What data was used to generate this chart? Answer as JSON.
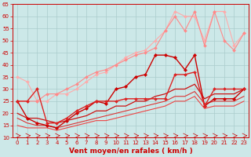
{
  "title": "",
  "xlabel": "Vent moyen/en rafales ( km/h )",
  "ylabel": "",
  "xlim": [
    -0.5,
    23.5
  ],
  "ylim": [
    10,
    65
  ],
  "yticks": [
    10,
    15,
    20,
    25,
    30,
    35,
    40,
    45,
    50,
    55,
    60,
    65
  ],
  "xticks": [
    0,
    1,
    2,
    3,
    4,
    5,
    6,
    7,
    8,
    9,
    10,
    11,
    12,
    13,
    14,
    15,
    16,
    17,
    18,
    19,
    20,
    21,
    22,
    23
  ],
  "bg_color": "#cce8e8",
  "grid_color": "#aacccc",
  "axis_color": "#cc0000",
  "series": [
    {
      "x": [
        0,
        1,
        2,
        3,
        4,
        5,
        6,
        7,
        8,
        9,
        10,
        11,
        12,
        13,
        14,
        15,
        16,
        17,
        18,
        19,
        20,
        21,
        22,
        23
      ],
      "y": [
        35,
        33,
        25,
        25,
        28,
        28,
        30,
        33,
        36,
        37,
        40,
        43,
        45,
        46,
        50,
        54,
        62,
        60,
        60,
        50,
        62,
        62,
        48,
        53
      ],
      "color": "#ffaaaa",
      "lw": 0.8,
      "marker": "D",
      "ms": 2.0
    },
    {
      "x": [
        0,
        1,
        2,
        3,
        4,
        5,
        6,
        7,
        8,
        9,
        10,
        11,
        12,
        13,
        14,
        15,
        16,
        17,
        18,
        19,
        20,
        21,
        22,
        23
      ],
      "y": [
        25,
        25,
        25,
        28,
        28,
        30,
        32,
        35,
        37,
        38,
        40,
        42,
        44,
        45,
        47,
        54,
        60,
        54,
        62,
        48,
        62,
        50,
        46,
        53
      ],
      "color": "#ff8888",
      "lw": 0.8,
      "marker": "D",
      "ms": 2.0
    },
    {
      "x": [
        0,
        1,
        2,
        3,
        4,
        5,
        6,
        7,
        8,
        9,
        10,
        11,
        12,
        13,
        14,
        15,
        16,
        17,
        18,
        19,
        20,
        21,
        22,
        23
      ],
      "y": [
        25,
        18,
        16,
        15,
        14,
        17,
        20,
        22,
        25,
        24,
        30,
        31,
        35,
        36,
        44,
        44,
        43,
        38,
        44,
        23,
        26,
        26,
        26,
        30
      ],
      "color": "#cc0000",
      "lw": 1.0,
      "marker": "D",
      "ms": 2.2
    },
    {
      "x": [
        0,
        1,
        2,
        3,
        4,
        5,
        6,
        7,
        8,
        9,
        10,
        11,
        12,
        13,
        14,
        15,
        16,
        17,
        18,
        19,
        20,
        21,
        22,
        23
      ],
      "y": [
        25,
        25,
        30,
        16,
        16,
        18,
        21,
        23,
        25,
        25,
        25,
        26,
        26,
        26,
        26,
        26,
        36,
        36,
        37,
        23,
        30,
        30,
        30,
        30
      ],
      "color": "#dd2222",
      "lw": 1.0,
      "marker": "D",
      "ms": 2.0
    },
    {
      "x": [
        0,
        1,
        2,
        3,
        4,
        5,
        6,
        7,
        8,
        9,
        10,
        11,
        12,
        13,
        14,
        15,
        16,
        17,
        18,
        19,
        20,
        21,
        22,
        23
      ],
      "y": [
        20,
        18,
        18,
        17,
        16,
        17,
        18,
        19,
        21,
        21,
        23,
        23,
        25,
        25,
        27,
        28,
        30,
        30,
        32,
        26,
        28,
        28,
        28,
        30
      ],
      "color": "#cc1111",
      "lw": 0.9,
      "marker": null,
      "ms": 0
    },
    {
      "x": [
        0,
        1,
        2,
        3,
        4,
        5,
        6,
        7,
        8,
        9,
        10,
        11,
        12,
        13,
        14,
        15,
        16,
        17,
        18,
        19,
        20,
        21,
        22,
        23
      ],
      "y": [
        18,
        16,
        15,
        15,
        14,
        15,
        16,
        17,
        18,
        19,
        20,
        21,
        22,
        23,
        24,
        25,
        27,
        27,
        29,
        24,
        25,
        25,
        25,
        27
      ],
      "color": "#dd3333",
      "lw": 0.8,
      "marker": null,
      "ms": 0
    },
    {
      "x": [
        0,
        1,
        2,
        3,
        4,
        5,
        6,
        7,
        8,
        9,
        10,
        11,
        12,
        13,
        14,
        15,
        16,
        17,
        18,
        19,
        20,
        21,
        22,
        23
      ],
      "y": [
        15,
        14,
        14,
        14,
        13,
        14,
        15,
        16,
        17,
        17,
        18,
        19,
        20,
        21,
        22,
        23,
        25,
        25,
        27,
        22,
        23,
        23,
        23,
        25
      ],
      "color": "#ee4444",
      "lw": 0.8,
      "marker": null,
      "ms": 0
    }
  ],
  "arrow_color": "#cc0000",
  "xlabel_color": "#cc0000",
  "tick_color": "#cc0000",
  "xlabel_fontsize": 6.5,
  "tick_fontsize": 5.0,
  "ytick_fontsize": 5.0
}
